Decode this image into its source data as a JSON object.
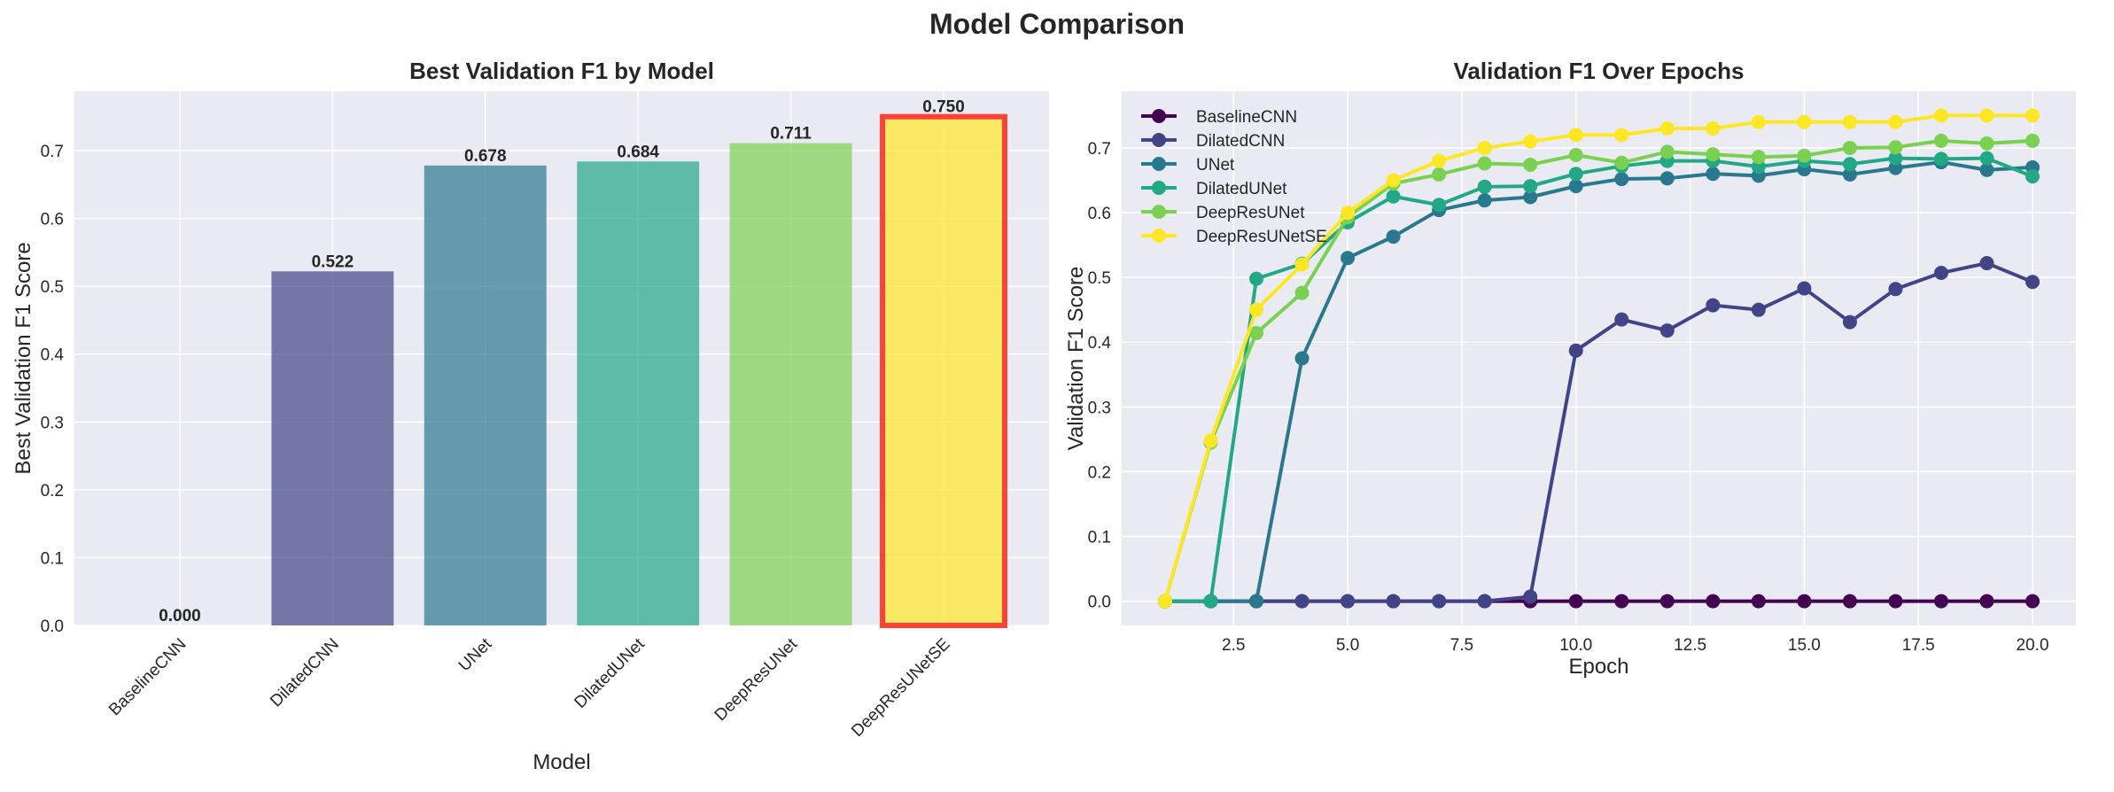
{
  "title": "Model Comparison",
  "chart_data": [
    {
      "type": "bar",
      "title": "Best Validation F1 by Model",
      "xlabel": "Model",
      "ylabel": "Best Validation F1 Score",
      "categories": [
        "BaselineCNN",
        "DilatedCNN",
        "UNet",
        "DilatedUNet",
        "DeepResUNet",
        "DeepResUNetSE"
      ],
      "values": [
        0.0,
        0.522,
        0.678,
        0.684,
        0.711,
        0.75
      ],
      "data_labels": [
        "0.000",
        "0.522",
        "0.678",
        "0.684",
        "0.711",
        "0.750"
      ],
      "colors": [
        "#440154",
        "#414487",
        "#2a788e",
        "#22a884",
        "#7ad151",
        "#fde725"
      ],
      "bar_alpha": 0.7,
      "highlight": {
        "category": "DeepResUNetSE",
        "edge_color": "#ff4136"
      },
      "ylim": [
        0,
        0.7875
      ],
      "yticks": [
        0.0,
        0.1,
        0.2,
        0.3,
        0.4,
        0.5,
        0.6,
        0.7
      ],
      "ytick_labels": [
        "0.0",
        "0.1",
        "0.2",
        "0.3",
        "0.4",
        "0.5",
        "0.6",
        "0.7"
      ],
      "grid": true
    },
    {
      "type": "line",
      "title": "Validation F1 Over Epochs",
      "xlabel": "Epoch",
      "ylabel": "Validation F1 Score",
      "x": [
        1,
        2,
        3,
        4,
        5,
        6,
        7,
        8,
        9,
        10,
        11,
        12,
        13,
        14,
        15,
        16,
        17,
        18,
        19,
        20
      ],
      "xlim": [
        0.05,
        20.95
      ],
      "ylim": [
        -0.0375,
        0.7875
      ],
      "xticks": [
        2.5,
        5.0,
        7.5,
        10.0,
        12.5,
        15.0,
        17.5,
        20.0
      ],
      "xtick_labels": [
        "2.5",
        "5.0",
        "7.5",
        "10.0",
        "12.5",
        "15.0",
        "17.5",
        "20.0"
      ],
      "yticks": [
        0.0,
        0.1,
        0.2,
        0.3,
        0.4,
        0.5,
        0.6,
        0.7
      ],
      "ytick_labels": [
        "0.0",
        "0.1",
        "0.2",
        "0.3",
        "0.4",
        "0.5",
        "0.6",
        "0.7"
      ],
      "grid": true,
      "legend_position": "top-left",
      "series": [
        {
          "name": "BaselineCNN",
          "color": "#440154",
          "values": [
            0,
            0,
            0,
            0,
            0,
            0,
            0,
            0,
            0,
            0,
            0,
            0,
            0,
            0,
            0,
            0,
            0,
            0,
            0,
            0
          ]
        },
        {
          "name": "DilatedCNN",
          "color": "#414487",
          "values": [
            0,
            0,
            0,
            0,
            0,
            0,
            0,
            0,
            0.007,
            0.387,
            0.435,
            0.418,
            0.457,
            0.45,
            0.483,
            0.431,
            0.482,
            0.507,
            0.522,
            0.493
          ]
        },
        {
          "name": "UNet",
          "color": "#2a788e",
          "values": [
            0,
            0,
            0,
            0.375,
            0.53,
            0.563,
            0.604,
            0.619,
            0.624,
            0.641,
            0.652,
            0.653,
            0.66,
            0.657,
            0.667,
            0.659,
            0.669,
            0.678,
            0.666,
            0.67
          ]
        },
        {
          "name": "DilatedUNet",
          "color": "#22a884",
          "values": [
            0,
            0,
            0.498,
            0.521,
            0.585,
            0.625,
            0.612,
            0.64,
            0.641,
            0.66,
            0.672,
            0.68,
            0.68,
            0.671,
            0.68,
            0.675,
            0.684,
            0.683,
            0.684,
            0.656
          ]
        },
        {
          "name": "DeepResUNet",
          "color": "#7ad151",
          "values": [
            0,
            0.245,
            0.414,
            0.476,
            0.593,
            0.645,
            0.659,
            0.676,
            0.674,
            0.689,
            0.677,
            0.694,
            0.69,
            0.686,
            0.688,
            0.7,
            0.701,
            0.711,
            0.707,
            0.711
          ]
        },
        {
          "name": "DeepResUNetSE",
          "color": "#fde725",
          "values": [
            0,
            0.248,
            0.45,
            0.52,
            0.6,
            0.65,
            0.68,
            0.7,
            0.71,
            0.72,
            0.72,
            0.73,
            0.73,
            0.74,
            0.74,
            0.74,
            0.74,
            0.75,
            0.75,
            0.75
          ]
        }
      ]
    }
  ]
}
